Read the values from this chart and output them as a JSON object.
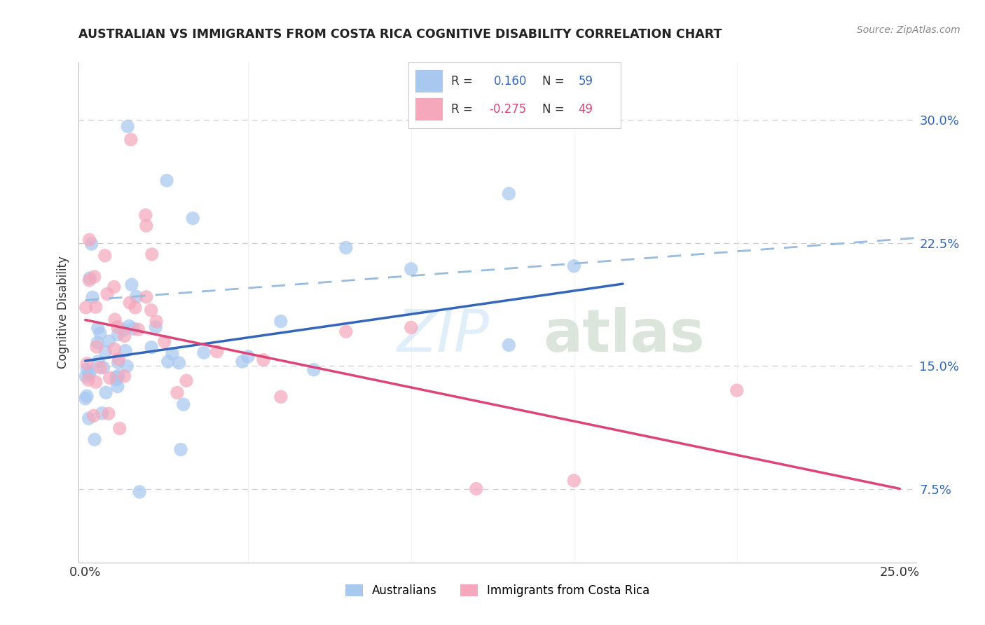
{
  "title": "AUSTRALIAN VS IMMIGRANTS FROM COSTA RICA COGNITIVE DISABILITY CORRELATION CHART",
  "source": "Source: ZipAtlas.com",
  "ylabel": "Cognitive Disability",
  "ytick_labels": [
    "7.5%",
    "15.0%",
    "22.5%",
    "30.0%"
  ],
  "ytick_values": [
    0.075,
    0.15,
    0.225,
    0.3
  ],
  "xlim": [
    -0.002,
    0.255
  ],
  "ylim": [
    0.03,
    0.335
  ],
  "r_blue": 0.16,
  "n_blue": 59,
  "r_pink": -0.275,
  "n_pink": 49,
  "blue_color": "#a8c8f0",
  "pink_color": "#f5a8bc",
  "blue_line_color": "#3366bb",
  "pink_line_color": "#dd4477",
  "dashed_line_color": "#99bbdd",
  "blue_label_color": "#3366bb",
  "pink_label_color": "#dd4477",
  "grid_color": "#cccccc",
  "bg_color": "#ffffff",
  "title_color": "#222222",
  "source_color": "#888888",
  "legend_australians": "Australians",
  "legend_immigrants": "Immigrants from Costa Rica",
  "blue_line_x": [
    0.0,
    0.165
  ],
  "blue_line_y": [
    0.153,
    0.2
  ],
  "pink_line_x": [
    0.0,
    0.25
  ],
  "pink_line_y": [
    0.178,
    0.075
  ],
  "dashed_line_x": [
    0.0,
    0.255
  ],
  "dashed_line_y": [
    0.19,
    0.228
  ]
}
